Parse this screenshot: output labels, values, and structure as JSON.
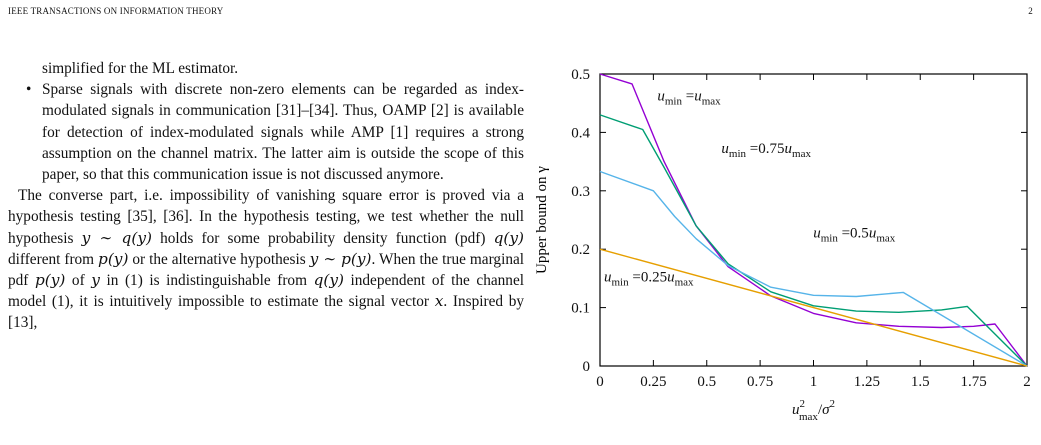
{
  "header": {
    "journal": "IEEE TRANSACTIONS ON INFORMATION THEORY",
    "page_number": "2"
  },
  "text": {
    "bullet_continuation": "simplified for the ML estimator.",
    "bullet_symbol": "•",
    "bullet_item": "Sparse signals with discrete non-zero elements can be regarded as index-modulated signals in communication [31]–[34]. Thus, OAMP [2] is available for detection of index-modulated signals while AMP [1] requires a strong assumption on the channel matrix. The latter aim is outside the scope of this paper, so that this communication issue is not discussed anymore.",
    "p2_a": "The converse part, i.e. impossibility of vanishing square error is proved via a hypothesis testing [35], [36]. In the hypothesis testing, we test whether the null hypothesis ",
    "p2_m1": "y ∼ q(y)",
    "p2_b": " holds for some probability density function (pdf) ",
    "p2_m2": "q(y)",
    "p2_c": " different from ",
    "p2_m3": "p(y)",
    "p2_d": " or the alternative hypothesis ",
    "p2_m4": "y ∼ p(y)",
    "p2_e": ". When the true marginal pdf ",
    "p2_m5": "p(y)",
    "p2_f": " of ",
    "p2_m6": "y",
    "p2_g": " in (1) is indistinguishable from ",
    "p2_m7": "q(y)",
    "p2_h": " independent of the channel model (1), it is intuitively impossible to estimate the signal vector ",
    "p2_m8": "x",
    "p2_i": ". Inspired by [13],"
  },
  "chart_data": {
    "type": "line",
    "xlabel": "u²max/σ²",
    "ylabel": "Upper bound on γ",
    "xlim": [
      0,
      2
    ],
    "ylim": [
      0,
      0.5
    ],
    "x_ticks": [
      "0",
      "0.25",
      "0.5",
      "0.75",
      "1",
      "1.25",
      "1.5",
      "1.75",
      "2"
    ],
    "y_ticks": [
      "0",
      "0.1",
      "0.2",
      "0.3",
      "0.4",
      "0.5"
    ],
    "grid": false,
    "series": [
      {
        "name": "umin = umax",
        "color": "#9400d3",
        "x": [
          0,
          0.15,
          0.3,
          0.45,
          0.6,
          0.8,
          1.0,
          1.2,
          1.4,
          1.6,
          1.75,
          1.85,
          2.0
        ],
        "y": [
          0.5,
          0.483,
          0.35,
          0.24,
          0.17,
          0.12,
          0.09,
          0.074,
          0.068,
          0.066,
          0.068,
          0.072,
          0.0
        ]
      },
      {
        "name": "umin = 0.75umax",
        "color": "#009e73",
        "x": [
          0,
          0.2,
          0.3,
          0.45,
          0.6,
          0.8,
          1.0,
          1.2,
          1.4,
          1.6,
          1.72,
          2.0
        ],
        "y": [
          0.43,
          0.405,
          0.34,
          0.24,
          0.175,
          0.127,
          0.103,
          0.094,
          0.092,
          0.096,
          0.102,
          0.0
        ]
      },
      {
        "name": "umin = 0.5umax",
        "color": "#56b4e9",
        "x": [
          0,
          0.25,
          0.35,
          0.45,
          0.6,
          0.8,
          1.0,
          1.2,
          1.42,
          2.0
        ],
        "y": [
          0.333,
          0.3,
          0.256,
          0.218,
          0.172,
          0.135,
          0.121,
          0.119,
          0.126,
          0.0
        ]
      },
      {
        "name": "umin = 0.25umax",
        "color": "#e69f00",
        "x": [
          0,
          2.0
        ],
        "y": [
          0.2,
          0.0
        ]
      }
    ],
    "annotations": [
      {
        "text": "umin =umax",
        "x": 0.25,
        "y": 0.455
      },
      {
        "text": "umin =0.75umax",
        "x": 0.55,
        "y": 0.365
      },
      {
        "text": "umin =0.5umax",
        "x": 0.98,
        "y": 0.22
      },
      {
        "text": "umin =0.25umax",
        "x": 0.0,
        "y": 0.145
      }
    ]
  }
}
